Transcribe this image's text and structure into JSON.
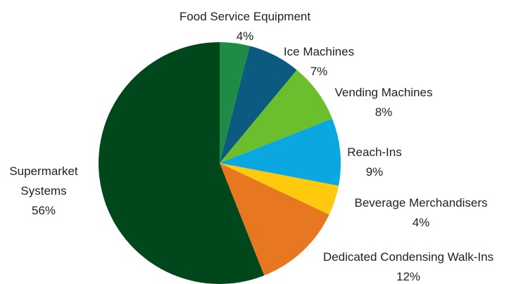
{
  "chart_data": {
    "type": "pie",
    "categories": [
      "Food Service Equipment",
      "Ice Machines",
      "Vending Machines",
      "Reach-Ins",
      "Beverage Merchandisers",
      "Dedicated Condensing Walk-Ins",
      "Supermarket Systems"
    ],
    "values": [
      4,
      7,
      8,
      9,
      4,
      12,
      56
    ],
    "value_labels": [
      "4%",
      "7%",
      "8%",
      "9%",
      "4%",
      "12%",
      "56%"
    ],
    "colors": [
      "#1e8c45",
      "#0b5a80",
      "#6cbf2c",
      "#0aa7e0",
      "#ffc90e",
      "#e87722",
      "#00471b"
    ]
  }
}
